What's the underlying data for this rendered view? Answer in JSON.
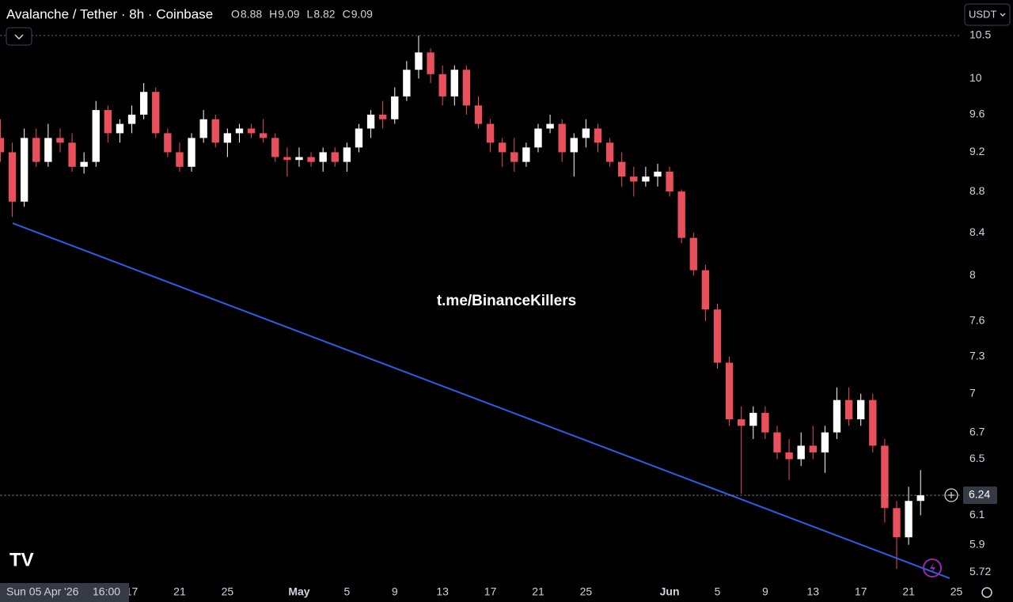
{
  "chart_data": {
    "type": "candlestick",
    "title": "Avalanche / Tether · 8h · Coinbase",
    "ohlc": [
      {
        "label": "O",
        "value": 8.88
      },
      {
        "label": "H",
        "value": 9.09
      },
      {
        "label": "L",
        "value": 8.82
      },
      {
        "label": "C",
        "value": 9.09
      }
    ],
    "currency": "USDT",
    "watermark": "t.me/BinanceKillers",
    "cursor_date": "Sun 05 Apr '26",
    "cursor_time": "16:00",
    "log_scale": true,
    "up_color": "#ffffff",
    "down_color": "#e8505b",
    "xlim": [
      4.97,
      85.43
    ],
    "ylim": [
      5.66,
      10.93
    ],
    "yticks": [
      10.5,
      10,
      9.6,
      9.2,
      8.8,
      8.4,
      8,
      7.6,
      7.3,
      7,
      6.7,
      6.5,
      6.1,
      5.9,
      5.72
    ],
    "xticks": [
      {
        "value": 16,
        "label": "17"
      },
      {
        "value": 20,
        "label": "21"
      },
      {
        "value": 24,
        "label": "25"
      },
      {
        "value": 30,
        "label": "May"
      },
      {
        "value": 34,
        "label": "5"
      },
      {
        "value": 38,
        "label": "9"
      },
      {
        "value": 42,
        "label": "13"
      },
      {
        "value": 46,
        "label": "17"
      },
      {
        "value": 50,
        "label": "21"
      },
      {
        "value": 54,
        "label": "25"
      },
      {
        "value": 61,
        "label": "Jun"
      },
      {
        "value": 65,
        "label": "5"
      },
      {
        "value": 69,
        "label": "9"
      },
      {
        "value": 73,
        "label": "13"
      },
      {
        "value": 77,
        "label": "17"
      },
      {
        "value": 81,
        "label": "21"
      },
      {
        "value": 85,
        "label": "25"
      }
    ],
    "last_price": 6.24,
    "x": [
      5,
      6,
      7,
      8,
      9,
      10,
      11,
      12,
      13,
      14,
      15,
      16,
      17,
      18,
      19,
      20,
      21,
      22,
      23,
      24,
      25,
      26,
      27,
      28,
      29,
      30,
      31,
      32,
      33,
      34,
      35,
      36,
      37,
      38,
      39,
      40,
      41,
      42,
      43,
      44,
      45,
      46,
      47,
      48,
      49,
      50,
      51,
      52,
      53,
      54,
      55,
      56,
      57,
      58,
      59,
      60,
      61,
      62,
      63,
      64,
      65,
      66,
      67,
      68,
      69,
      70,
      71,
      72,
      73,
      74,
      75,
      76,
      77,
      78,
      79,
      80,
      81,
      82
    ],
    "open": [
      9.35,
      9.2,
      8.7,
      9.35,
      9.1,
      9.35,
      9.3,
      9.05,
      9.1,
      9.65,
      9.4,
      9.5,
      9.6,
      9.85,
      9.4,
      9.2,
      9.05,
      9.35,
      9.55,
      9.3,
      9.4,
      9.45,
      9.4,
      9.35,
      9.15,
      9.12,
      9.15,
      9.1,
      9.2,
      9.1,
      9.25,
      9.45,
      9.6,
      9.55,
      9.8,
      10.1,
      10.3,
      10.05,
      9.8,
      10.1,
      9.7,
      9.5,
      9.3,
      9.2,
      9.1,
      9.25,
      9.45,
      9.5,
      9.2,
      9.35,
      9.45,
      9.3,
      9.1,
      8.95,
      8.9,
      8.95,
      9.0,
      8.8,
      8.35,
      8.05,
      7.7,
      7.25,
      6.8,
      6.75,
      6.85,
      6.7,
      6.55,
      6.5,
      6.6,
      6.55,
      6.7,
      6.95,
      6.8,
      6.95,
      6.6,
      6.15,
      5.95,
      6.2
    ],
    "high": [
      9.55,
      9.3,
      9.45,
      9.45,
      9.5,
      9.45,
      9.4,
      9.2,
      9.75,
      9.7,
      9.55,
      9.7,
      9.95,
      9.9,
      9.45,
      9.3,
      9.4,
      9.65,
      9.6,
      9.45,
      9.5,
      9.5,
      9.55,
      9.4,
      9.25,
      9.25,
      9.2,
      9.25,
      9.25,
      9.3,
      9.5,
      9.65,
      9.75,
      9.9,
      10.2,
      10.5,
      10.35,
      10.15,
      10.15,
      10.15,
      9.8,
      9.55,
      9.35,
      9.35,
      9.3,
      9.5,
      9.6,
      9.55,
      9.4,
      9.55,
      9.5,
      9.35,
      9.2,
      9.05,
      9.05,
      9.08,
      9.05,
      8.82,
      8.4,
      8.1,
      7.75,
      7.3,
      6.9,
      6.9,
      6.9,
      6.75,
      6.65,
      6.7,
      6.75,
      6.75,
      7.05,
      7.05,
      7.0,
      7.0,
      6.65,
      6.2,
      6.3,
      6.42
    ],
    "low": [
      9.1,
      8.55,
      8.65,
      9.05,
      9.05,
      9.2,
      9.0,
      8.98,
      9.05,
      9.3,
      9.3,
      9.4,
      9.55,
      9.35,
      9.15,
      9.0,
      9.0,
      9.3,
      9.25,
      9.15,
      9.3,
      9.35,
      9.3,
      9.1,
      8.95,
      9.05,
      9.05,
      9.0,
      9.05,
      9.0,
      9.2,
      9.35,
      9.45,
      9.5,
      9.75,
      10.0,
      9.95,
      9.7,
      9.7,
      9.6,
      9.45,
      9.2,
      9.05,
      9.0,
      9.05,
      9.2,
      9.4,
      9.1,
      8.95,
      9.25,
      9.2,
      9.05,
      8.85,
      8.75,
      8.85,
      8.85,
      8.75,
      8.3,
      8.0,
      7.6,
      7.2,
      6.75,
      6.25,
      6.65,
      6.65,
      6.5,
      6.35,
      6.45,
      6.5,
      6.4,
      6.65,
      6.75,
      6.75,
      6.55,
      6.05,
      5.74,
      5.9,
      6.1
    ],
    "close": [
      9.2,
      8.7,
      9.35,
      9.1,
      9.35,
      9.3,
      9.05,
      9.1,
      9.65,
      9.4,
      9.5,
      9.6,
      9.85,
      9.4,
      9.2,
      9.05,
      9.35,
      9.55,
      9.3,
      9.4,
      9.45,
      9.4,
      9.35,
      9.15,
      9.12,
      9.15,
      9.1,
      9.2,
      9.1,
      9.25,
      9.45,
      9.6,
      9.55,
      9.8,
      10.1,
      10.3,
      10.05,
      9.8,
      10.1,
      9.7,
      9.5,
      9.3,
      9.2,
      9.1,
      9.25,
      9.45,
      9.5,
      9.2,
      9.35,
      9.45,
      9.3,
      9.1,
      8.95,
      8.9,
      8.95,
      9.0,
      8.8,
      8.35,
      8.05,
      7.7,
      7.25,
      6.8,
      6.75,
      6.85,
      6.7,
      6.55,
      6.5,
      6.6,
      6.55,
      6.7,
      6.95,
      6.8,
      6.95,
      6.6,
      6.15,
      5.95,
      6.2,
      6.24
    ],
    "trendline": {
      "x": [
        6.03,
        84.44
      ],
      "values": [
        8.49,
        5.68
      ],
      "color": "#2f5ce8"
    }
  }
}
